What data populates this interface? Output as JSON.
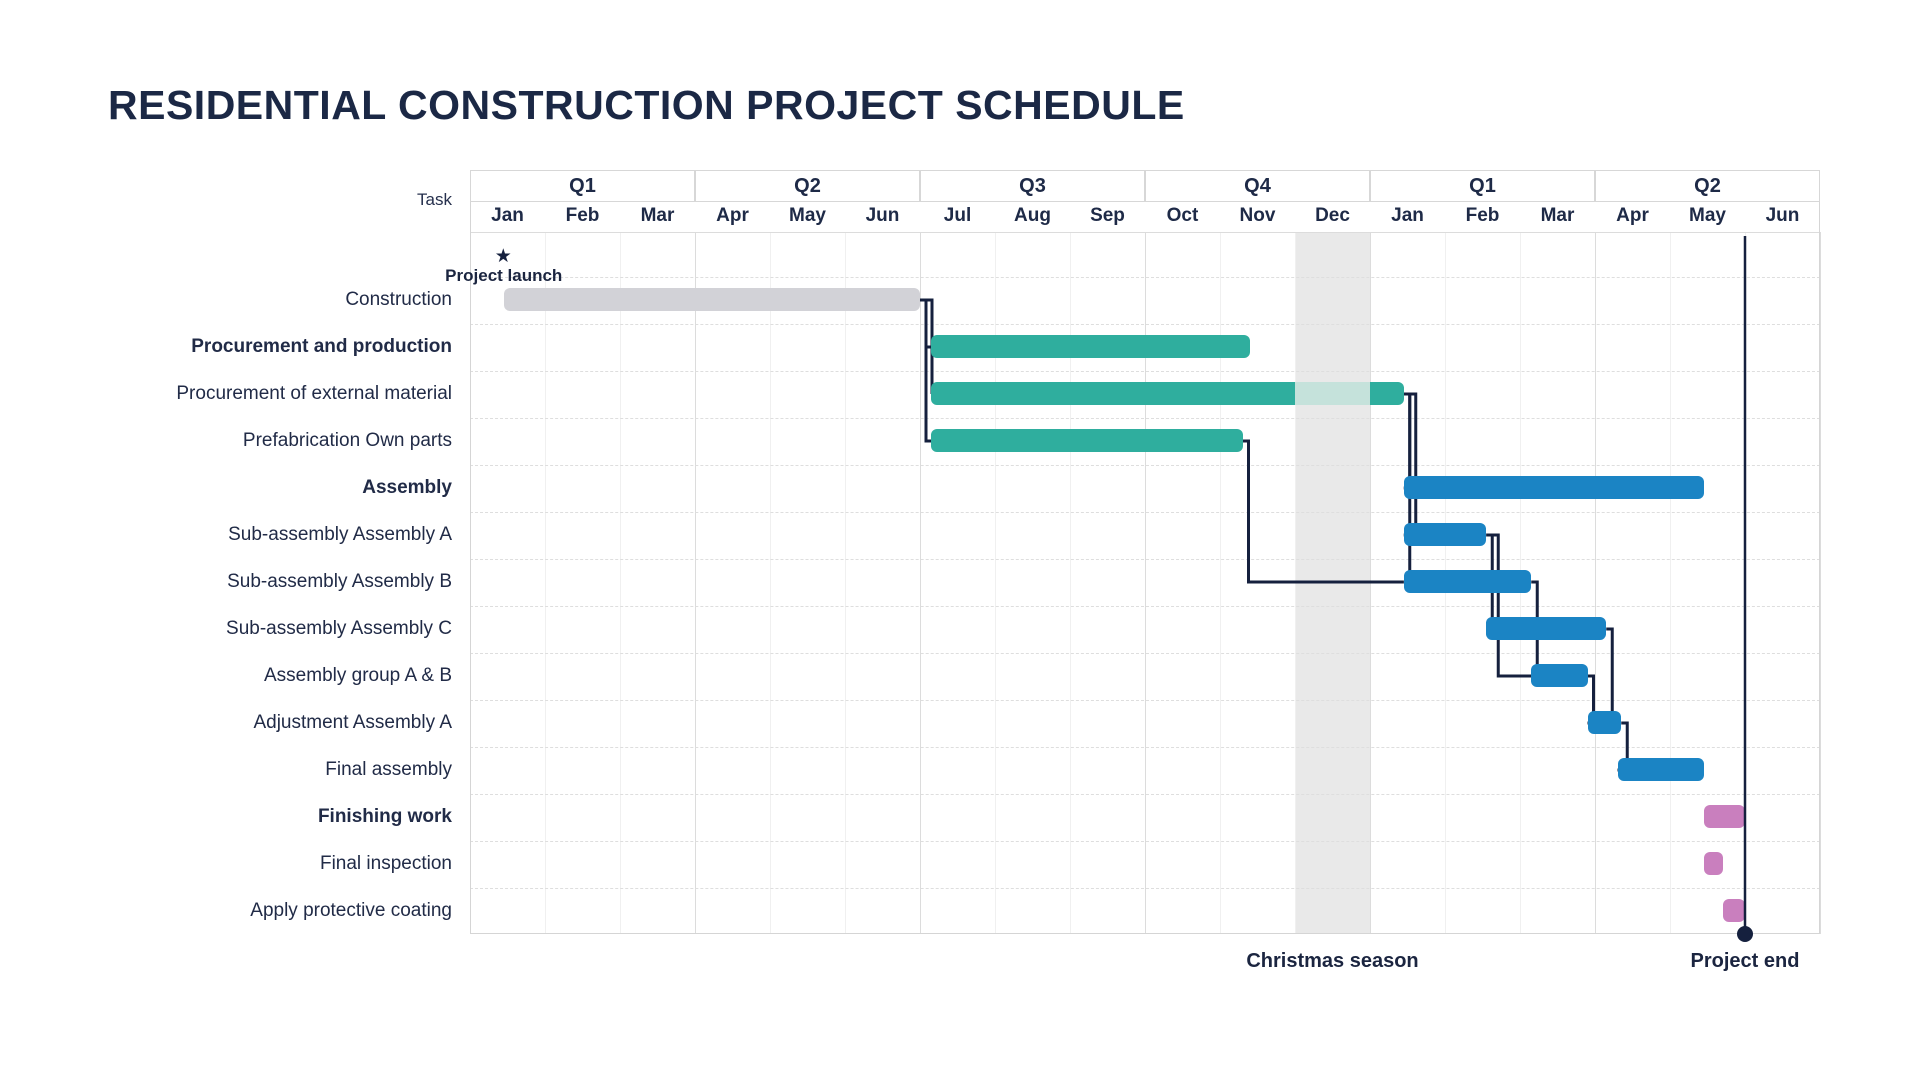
{
  "title": "RESIDENTIAL CONSTRUCTION PROJECT SCHEDULE",
  "header": {
    "task_label": "Task",
    "quarters": [
      "Q1",
      "Q2",
      "Q3",
      "Q4",
      "Q1",
      "Q2"
    ],
    "months": [
      "Jan",
      "Feb",
      "Mar",
      "Apr",
      "May",
      "Jun",
      "Jul",
      "Aug",
      "Sep",
      "Oct",
      "Nov",
      "Dec",
      "Jan",
      "Feb",
      "Mar",
      "Apr",
      "May",
      "Jun"
    ]
  },
  "annotations": {
    "project_launch": "Project launch",
    "christmas_season": "Christmas season",
    "project_end": "Project end"
  },
  "colors": {
    "teal": "#2FAE9E",
    "teal_paused": "#C5E2DB",
    "blue": "#1B84C4",
    "pink": "#C97FBE",
    "gray": "#D2D2D7",
    "navy": "#15203E",
    "band": "#E9E9E9",
    "text": "#1E2A47"
  },
  "chart_data": {
    "type": "gantt",
    "x_axis": {
      "unit": "months",
      "range": [
        0,
        18
      ],
      "note": "0 = start of first Jan; two calendar years Jan-Jun"
    },
    "tasks": [
      {
        "label": "Construction",
        "bold": false,
        "color": "gray",
        "start": 0.45,
        "end": 6.0
      },
      {
        "label": "Procurement and production",
        "bold": true,
        "color": "teal",
        "start": 6.15,
        "end": 10.4
      },
      {
        "label": "Procurement of external material",
        "bold": false,
        "color": "teal",
        "start": 6.15,
        "end": 12.45,
        "pause": {
          "start": 11.0,
          "end": 12.0
        }
      },
      {
        "label": "Prefabrication Own parts",
        "bold": false,
        "color": "teal",
        "start": 6.15,
        "end": 10.3
      },
      {
        "label": "Assembly",
        "bold": true,
        "color": "blue",
        "start": 12.45,
        "end": 16.45
      },
      {
        "label": "Sub-assembly Assembly A",
        "bold": false,
        "color": "blue",
        "start": 12.45,
        "end": 13.55
      },
      {
        "label": "Sub-assembly Assembly B",
        "bold": false,
        "color": "blue",
        "start": 12.45,
        "end": 14.15
      },
      {
        "label": "Sub-assembly Assembly C",
        "bold": false,
        "color": "blue",
        "start": 13.55,
        "end": 15.15
      },
      {
        "label": "Assembly group A & B",
        "bold": false,
        "color": "blue",
        "start": 14.15,
        "end": 14.9
      },
      {
        "label": "Adjustment Assembly A",
        "bold": false,
        "color": "blue",
        "start": 14.9,
        "end": 15.35
      },
      {
        "label": "Final assembly",
        "bold": false,
        "color": "blue",
        "start": 15.3,
        "end": 16.45
      },
      {
        "label": "Finishing work",
        "bold": true,
        "color": "pink",
        "start": 16.45,
        "end": 17.0
      },
      {
        "label": "Final inspection",
        "bold": false,
        "color": "pink",
        "start": 16.45,
        "end": 16.7
      },
      {
        "label": "Apply protective coating",
        "bold": false,
        "color": "pink",
        "start": 16.7,
        "end": 17.0
      }
    ],
    "dependencies": [
      [
        0,
        1
      ],
      [
        0,
        2
      ],
      [
        0,
        3
      ],
      [
        2,
        4
      ],
      [
        2,
        5
      ],
      [
        2,
        6
      ],
      [
        3,
        6
      ],
      [
        5,
        7
      ],
      [
        5,
        8
      ],
      [
        6,
        8
      ],
      [
        7,
        9
      ],
      [
        8,
        9
      ],
      [
        9,
        10
      ]
    ],
    "milestones": [
      {
        "label": "Project launch",
        "month": 0.45,
        "marker": "star"
      },
      {
        "label": "Project end",
        "month": 17.0,
        "marker": "line-dot"
      }
    ],
    "shaded_region": {
      "label": "Christmas season",
      "start": 11.0,
      "end": 12.0
    }
  }
}
